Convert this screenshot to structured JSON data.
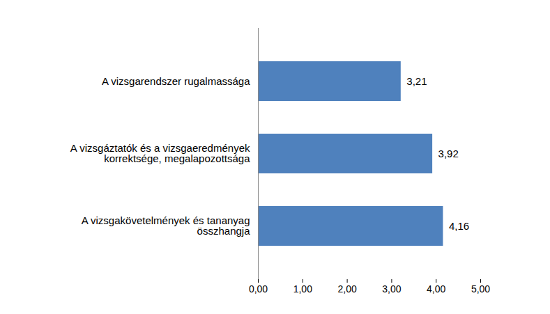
{
  "chart_data": {
    "type": "bar",
    "orientation": "horizontal",
    "categories": [
      "A vizsgarendszer rugalmassága",
      "A vizsgáztatók és a vizsgaeredmények korrektsége, megalapozottsága",
      "A vizsgakövetelmények és tananyag összhangja"
    ],
    "values": [
      3.21,
      3.92,
      4.16
    ],
    "value_labels": [
      "3,21",
      "3,92",
      "4,16"
    ],
    "color": "#4f81bd",
    "xlim": [
      0,
      5
    ],
    "xticks": [
      {
        "value": 0,
        "label": "0,00"
      },
      {
        "value": 1,
        "label": "1,00"
      },
      {
        "value": 2,
        "label": "2,00"
      },
      {
        "value": 3,
        "label": "3,00"
      },
      {
        "value": 4,
        "label": "4,00"
      },
      {
        "value": 5,
        "label": "5,00"
      }
    ],
    "data_labels": true,
    "grid": false
  }
}
